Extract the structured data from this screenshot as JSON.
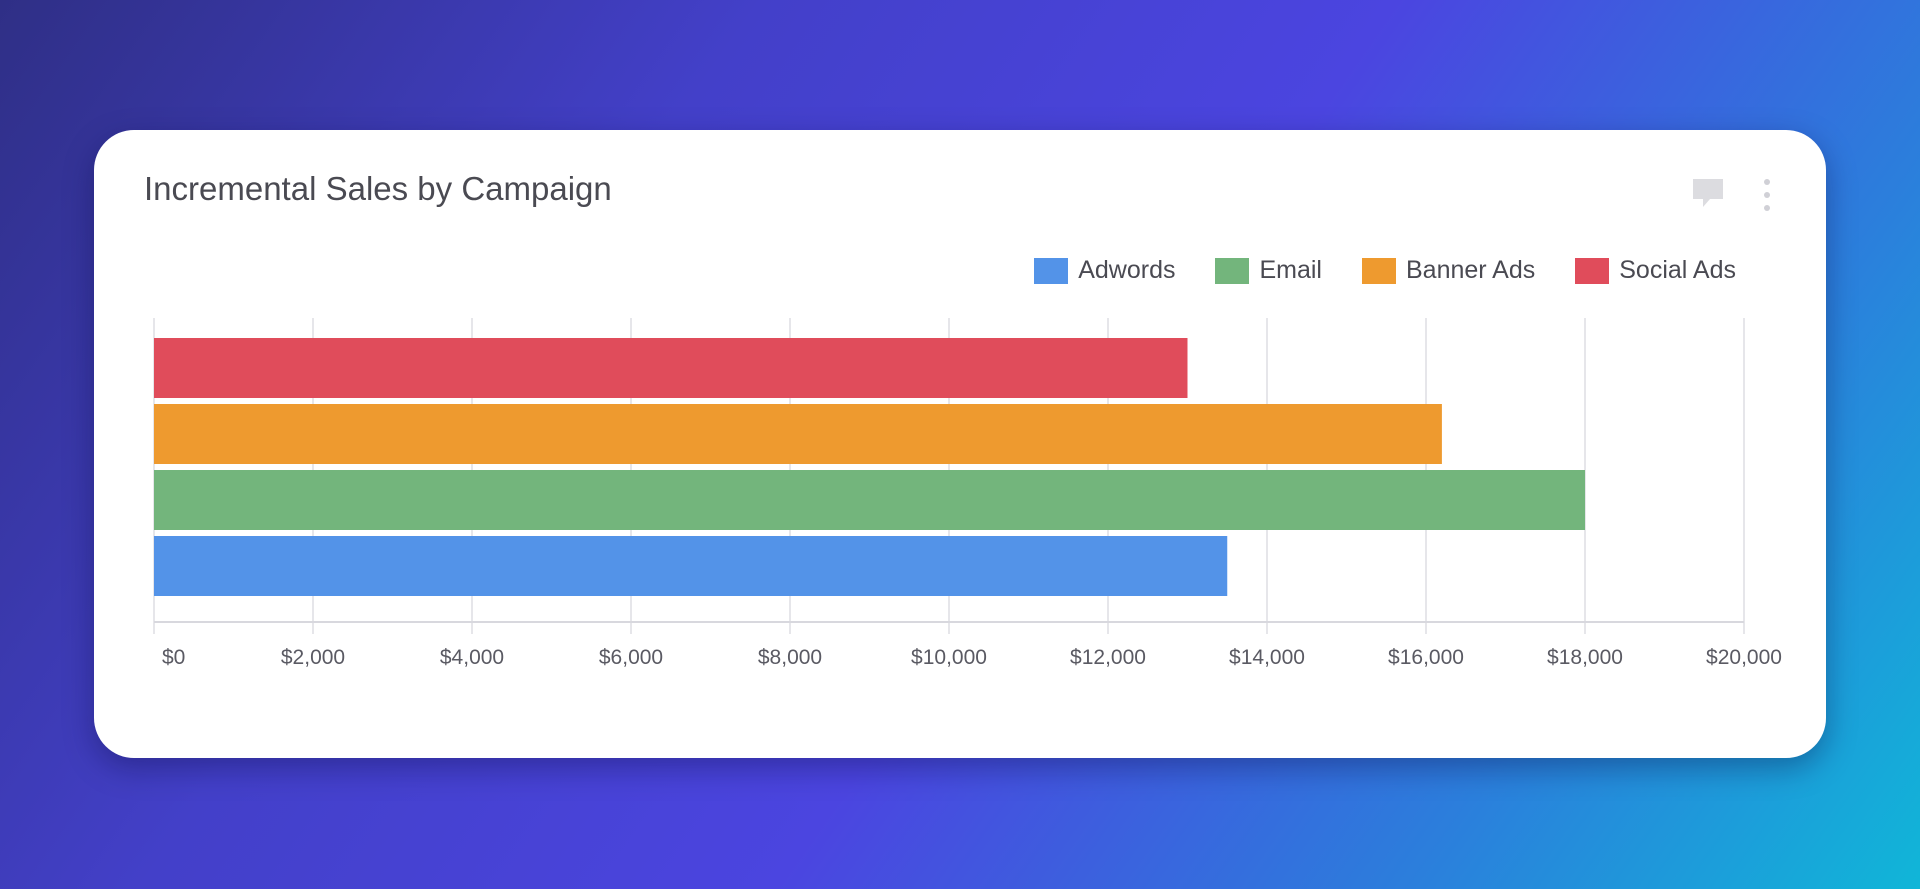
{
  "card": {
    "title": "Incremental Sales by Campaign",
    "comment_icon": "comment-icon",
    "more_icon": "more-vertical-icon"
  },
  "colors": {
    "grid": "#e6e6ea",
    "axis": "#d8d8de"
  },
  "chart_data": {
    "type": "bar",
    "orientation": "horizontal",
    "title": "Incremental Sales by Campaign",
    "xlim": [
      0,
      20000
    ],
    "x_ticks": [
      0,
      2000,
      4000,
      6000,
      8000,
      10000,
      12000,
      14000,
      16000,
      18000,
      20000
    ],
    "x_tick_labels": [
      "$0",
      "$2,000",
      "$4,000",
      "$6,000",
      "$8,000",
      "$10,000",
      "$12,000",
      "$14,000",
      "$16,000",
      "$18,000",
      "$20,000"
    ],
    "grid": true,
    "legend_position": "top-right",
    "series": [
      {
        "name": "Adwords",
        "value": 13500,
        "color": "#5393e8"
      },
      {
        "name": "Email",
        "value": 18000,
        "color": "#73b57c"
      },
      {
        "name": "Banner Ads",
        "value": 16200,
        "color": "#ee9a2f"
      },
      {
        "name": "Social Ads",
        "value": 13000,
        "color": "#e04c5b"
      }
    ]
  }
}
